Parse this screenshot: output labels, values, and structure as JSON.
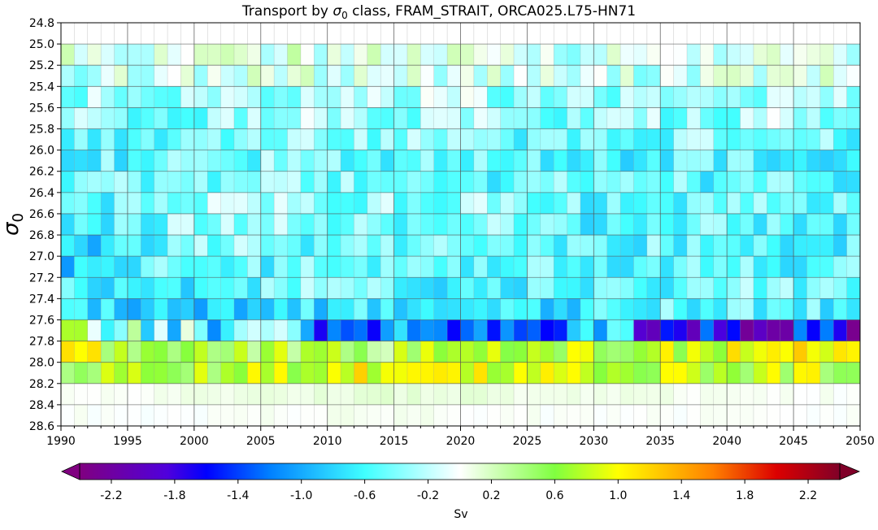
{
  "chart_data": {
    "type": "heatmap",
    "title_prefix": "Transport by ",
    "title_symbol": "σ",
    "title_symbol_sub": "0",
    "title_suffix": " class, FRAM_STRAIT, ORCA025.L75-HN71",
    "ylabel_symbol": "σ",
    "ylabel_sub": "0",
    "xlim": [
      1990,
      2050
    ],
    "ylim_top": 24.8,
    "ylim_bottom": 28.6,
    "x_ticks": [
      "1990",
      "1995",
      "2000",
      "2005",
      "2010",
      "2015",
      "2020",
      "2025",
      "2030",
      "2035",
      "2040",
      "2045",
      "2050"
    ],
    "y_ticks": [
      "24.8",
      "25.0",
      "25.2",
      "25.4",
      "25.6",
      "25.8",
      "26.0",
      "26.2",
      "26.4",
      "26.6",
      "26.8",
      "27.0",
      "27.2",
      "27.4",
      "27.6",
      "27.8",
      "28.0",
      "28.2",
      "28.4",
      "28.6"
    ],
    "years_start": 1990,
    "years_end": 2049,
    "sigma_classes": [
      25.0,
      25.2,
      25.4,
      25.6,
      25.8,
      26.0,
      26.2,
      26.4,
      26.6,
      26.8,
      27.0,
      27.2,
      27.4,
      27.6,
      27.8,
      28.0,
      28.2,
      28.4
    ],
    "class_profiles": {
      "25.0": [
        0,
        0,
        0,
        0,
        0,
        0,
        -0.05,
        -0.1,
        -0.1,
        -0.05,
        -0.05,
        -0.05,
        -0.05
      ],
      "25.2": [
        -0.2,
        -0.1,
        -0.05,
        -0.05,
        -0.05,
        -0.05,
        -0.05,
        -0.1,
        -0.2,
        -0.1,
        -0.05,
        -0.05,
        -0.05
      ],
      "25.4": [
        -0.35,
        -0.3,
        -0.3,
        -0.25,
        -0.25,
        -0.25,
        -0.25,
        -0.3,
        -0.35,
        -0.3,
        -0.25,
        -0.25,
        -0.3
      ],
      "25.6": [
        -0.4,
        -0.35,
        -0.35,
        -0.3,
        -0.3,
        -0.3,
        -0.35,
        -0.35,
        -0.4,
        -0.35,
        -0.3,
        -0.3,
        -0.35
      ],
      "25.8": [
        -0.5,
        -0.45,
        -0.4,
        -0.4,
        -0.35,
        -0.35,
        -0.4,
        -0.45,
        -0.5,
        -0.45,
        -0.4,
        -0.45,
        -0.5
      ],
      "26.0": [
        -0.55,
        -0.5,
        -0.45,
        -0.4,
        -0.4,
        -0.45,
        -0.5,
        -0.6,
        -0.65,
        -0.6,
        -0.55,
        -0.55,
        -0.6
      ],
      "26.2": [
        -0.6,
        -0.5,
        -0.35,
        -0.4,
        -0.45,
        -0.45,
        -0.5,
        -0.45,
        -0.5,
        -0.55,
        -0.5,
        -0.5,
        -0.55
      ],
      "26.4": [
        -0.6,
        -0.45,
        -0.3,
        -0.3,
        -0.35,
        -0.4,
        -0.4,
        -0.3,
        -0.5,
        -0.55,
        -0.45,
        -0.5,
        -0.55
      ],
      "26.6": [
        -0.75,
        -0.55,
        -0.35,
        -0.4,
        -0.35,
        -0.4,
        -0.45,
        -0.4,
        -0.55,
        -0.6,
        -0.5,
        -0.55,
        -0.6
      ],
      "26.8": [
        -0.85,
        -0.65,
        -0.3,
        -0.5,
        -0.5,
        -0.4,
        -0.35,
        -0.45,
        -0.55,
        -0.5,
        -0.5,
        -0.5,
        -0.55
      ],
      "27.0": [
        -0.85,
        -0.6,
        -0.4,
        -0.55,
        -0.45,
        -0.5,
        -0.45,
        -0.5,
        -0.6,
        -0.45,
        -0.5,
        -0.5,
        -0.55
      ],
      "27.2": [
        -0.65,
        -0.7,
        -0.6,
        -0.5,
        -0.3,
        -0.6,
        -0.75,
        -0.55,
        -0.6,
        -0.55,
        -0.45,
        -0.5,
        -0.5
      ],
      "27.4": [
        -0.6,
        -0.85,
        -0.8,
        -0.8,
        -0.7,
        -0.65,
        -0.75,
        -0.7,
        -0.65,
        -0.55,
        -0.55,
        -0.55,
        -0.6
      ],
      "27.6": [
        0.3,
        -0.2,
        -0.55,
        -0.55,
        -1.25,
        -1.1,
        -0.9,
        -1.0,
        -1.0,
        -1.4,
        -1.6,
        -1.7,
        -1.8
      ],
      "27.8": [
        1.0,
        0.65,
        0.55,
        0.6,
        0.5,
        0.55,
        0.65,
        0.7,
        0.75,
        0.85,
        0.95,
        0.9,
        0.95
      ],
      "28.0": [
        0.65,
        0.6,
        0.7,
        0.8,
        0.95,
        1.05,
        1.0,
        0.95,
        0.85,
        0.85,
        0.8,
        0.75,
        0.75
      ],
      "28.2": [
        0.0,
        0.02,
        0.05,
        0.08,
        0.1,
        0.12,
        0.1,
        0.08,
        0.06,
        0.05,
        0.04,
        0.03,
        0.02
      ],
      "28.4": [
        0,
        0,
        0.01,
        0.02,
        0.03,
        0.03,
        0.02,
        0.02,
        0.01,
        0.01,
        0.01,
        0,
        0
      ]
    },
    "profile_anchor_years": [
      1990,
      1995,
      2000,
      2005,
      2010,
      2015,
      2020,
      2025,
      2030,
      2035,
      2040,
      2045,
      2050
    ],
    "colorbar": {
      "min": -2.4,
      "max": 2.4,
      "colormap": "ncl-hotcold",
      "extend": "both",
      "tick_labels": [
        "-2.2",
        "-1.8",
        "-1.4",
        "-1.0",
        "-0.6",
        "-0.2",
        "0.2",
        "0.6",
        "1.0",
        "1.4",
        "1.8",
        "2.2"
      ],
      "tick_values": [
        -2.2,
        -1.8,
        -1.4,
        -1.0,
        -0.6,
        -0.2,
        0.2,
        0.6,
        1.0,
        1.4,
        1.8,
        2.2
      ],
      "label": "Sv"
    },
    "grid": true
  }
}
